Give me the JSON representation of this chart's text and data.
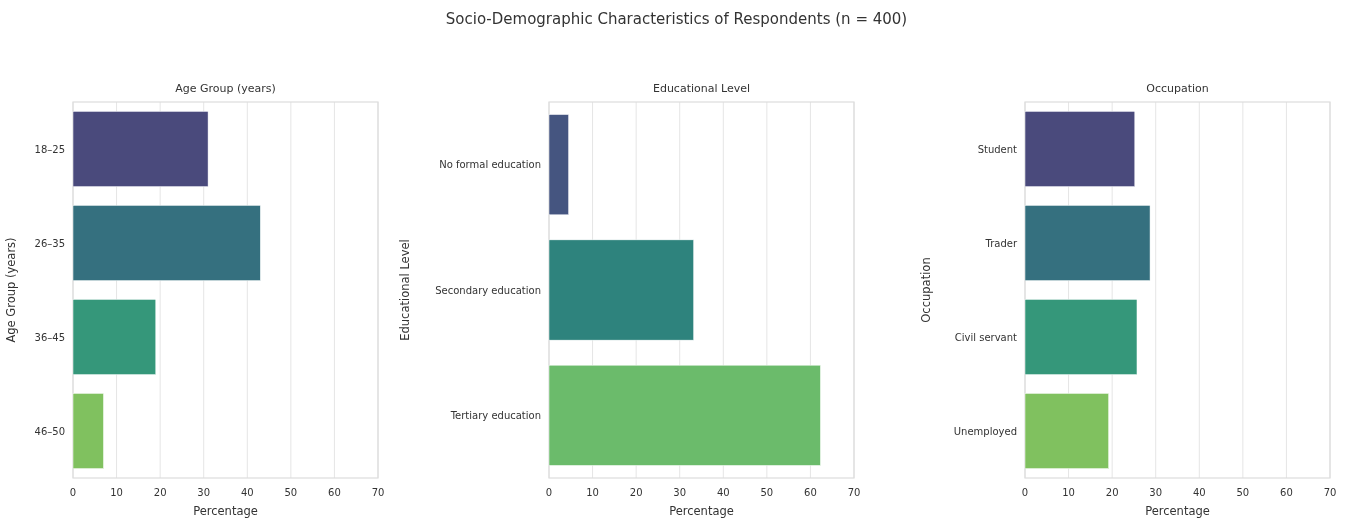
{
  "chart_data": [
    {
      "type": "bar",
      "orientation": "horizontal",
      "title": "Age Group (years)",
      "xlabel": "Percentage",
      "ylabel": "Age Group (years)",
      "annotations": [
        "Socio-Demographic Characteristics of Respondents (n = 400)"
      ],
      "categories": [
        "18–25",
        "26–35",
        "36–45",
        "46–50"
      ],
      "values": [
        31,
        43,
        19,
        7
      ],
      "colors": [
        "#4a4a7c",
        "#35707f",
        "#35977a",
        "#80c15f"
      ],
      "xlim": [
        0,
        70
      ],
      "xticks": [
        0,
        10,
        20,
        30,
        40,
        50,
        60,
        70
      ],
      "grid": "x"
    },
    {
      "type": "bar",
      "orientation": "horizontal",
      "title": "Educational Level",
      "xlabel": "Percentage",
      "ylabel": "Educational Level",
      "categories": [
        "No formal education",
        "Secondary education",
        "Tertiary education"
      ],
      "values": [
        4.5,
        33.2,
        62.3
      ],
      "colors": [
        "#455580",
        "#2e837d",
        "#6bbb6b"
      ],
      "xlim": [
        0,
        70
      ],
      "xticks": [
        0,
        10,
        20,
        30,
        40,
        50,
        60,
        70
      ],
      "grid": "x"
    },
    {
      "type": "bar",
      "orientation": "horizontal",
      "title": "Occupation",
      "xlabel": "Percentage",
      "ylabel": "Occupation",
      "categories": [
        "Student",
        "Trader",
        "Civil servant",
        "Unemployed"
      ],
      "values": [
        25.2,
        28.7,
        25.7,
        19.2
      ],
      "colors": [
        "#4a4a7c",
        "#35707f",
        "#35977a",
        "#80c15f"
      ],
      "xlim": [
        0,
        70
      ],
      "xticks": [
        0,
        10,
        20,
        30,
        40,
        50,
        60,
        70
      ],
      "grid": "x"
    }
  ]
}
